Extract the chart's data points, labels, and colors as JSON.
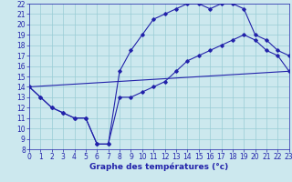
{
  "background_color": "#cce8ee",
  "grid_color": "#99ccd5",
  "line_color": "#2222aa",
  "xlabel": "Graphe des températures (°c)",
  "xlim": [
    0,
    23
  ],
  "ylim": [
    8,
    22
  ],
  "xticks": [
    0,
    1,
    2,
    3,
    4,
    5,
    6,
    7,
    8,
    9,
    10,
    11,
    12,
    13,
    14,
    15,
    16,
    17,
    18,
    19,
    20,
    21,
    22,
    23
  ],
  "yticks": [
    8,
    9,
    10,
    11,
    12,
    13,
    14,
    15,
    16,
    17,
    18,
    19,
    20,
    21,
    22
  ],
  "tick_fontsize": 5.5,
  "xlabel_fontsize": 6.5,
  "markersize": 1.8,
  "linewidth": 0.8,
  "curve1_x": [
    0,
    1,
    2,
    3,
    4,
    5,
    6,
    7,
    8,
    9,
    10,
    11,
    12,
    13,
    14,
    15,
    16,
    17,
    18,
    19,
    20,
    21,
    22,
    23
  ],
  "curve1_y": [
    14,
    13,
    12,
    11.5,
    11,
    11,
    8.5,
    8.5,
    15.5,
    17.5,
    19,
    20.5,
    21,
    21.5,
    22,
    22,
    21.5,
    22,
    22,
    21.5,
    19,
    18.5,
    17.5,
    17
  ],
  "curve2_x": [
    0,
    1,
    2,
    3,
    4,
    5,
    6,
    7,
    8,
    9,
    10,
    11,
    12,
    13,
    14,
    15,
    16,
    17,
    18,
    19,
    20,
    21,
    22,
    23
  ],
  "curve2_y": [
    14,
    13,
    12,
    11.5,
    11,
    11,
    8.5,
    8.5,
    13,
    13,
    13.5,
    14,
    14.5,
    15.5,
    16.5,
    17,
    17.5,
    18,
    18.5,
    19,
    18.5,
    17.5,
    17,
    15.5
  ],
  "curve3_x": [
    0,
    23
  ],
  "curve3_y": [
    14,
    15.5
  ]
}
